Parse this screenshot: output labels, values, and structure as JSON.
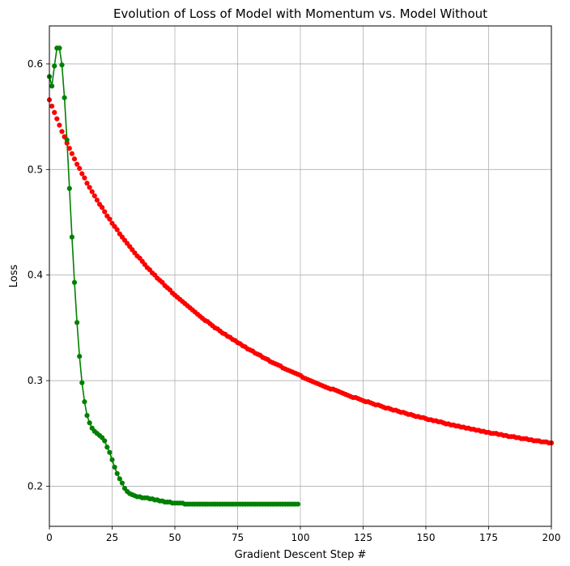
{
  "chart_data": {
    "type": "line",
    "title": "Evolution of Loss of Model with Momentum vs. Model Without",
    "xlabel": "Gradient Descent Step #",
    "ylabel": "Loss",
    "xlim": [
      0,
      200
    ],
    "ylim": [
      0.162,
      0.636
    ],
    "grid": true,
    "x_ticks": [
      0,
      25,
      50,
      75,
      100,
      125,
      150,
      175,
      200
    ],
    "y_ticks": [
      0.2,
      0.3,
      0.4,
      0.5,
      0.6
    ],
    "x_tick_labels": [
      "0",
      "25",
      "50",
      "75",
      "100",
      "125",
      "150",
      "175",
      "200"
    ],
    "y_tick_labels": [
      "0.2",
      "0.3",
      "0.4",
      "0.5",
      "0.6"
    ],
    "series": [
      {
        "color": "#ff0000",
        "style": "markers",
        "x_start": 0,
        "x_step": 1,
        "values": [
          0.566,
          0.56,
          0.554,
          0.548,
          0.542,
          0.536,
          0.531,
          0.525,
          0.52,
          0.515,
          0.51,
          0.505,
          0.501,
          0.496,
          0.492,
          0.487,
          0.483,
          0.479,
          0.475,
          0.471,
          0.467,
          0.464,
          0.46,
          0.456,
          0.453,
          0.449,
          0.446,
          0.443,
          0.439,
          0.436,
          0.433,
          0.43,
          0.427,
          0.424,
          0.421,
          0.418,
          0.416,
          0.413,
          0.41,
          0.407,
          0.405,
          0.402,
          0.4,
          0.397,
          0.395,
          0.393,
          0.39,
          0.388,
          0.386,
          0.383,
          0.381,
          0.379,
          0.377,
          0.375,
          0.373,
          0.371,
          0.369,
          0.367,
          0.365,
          0.363,
          0.361,
          0.359,
          0.357,
          0.356,
          0.354,
          0.352,
          0.35,
          0.349,
          0.347,
          0.345,
          0.344,
          0.342,
          0.341,
          0.339,
          0.338,
          0.336,
          0.335,
          0.333,
          0.332,
          0.33,
          0.329,
          0.328,
          0.326,
          0.325,
          0.324,
          0.322,
          0.321,
          0.32,
          0.318,
          0.317,
          0.316,
          0.315,
          0.314,
          0.312,
          0.311,
          0.31,
          0.309,
          0.308,
          0.307,
          0.306,
          0.305,
          0.303,
          0.302,
          0.301,
          0.3,
          0.299,
          0.298,
          0.297,
          0.296,
          0.295,
          0.294,
          0.293,
          0.292,
          0.292,
          0.291,
          0.29,
          0.289,
          0.288,
          0.287,
          0.286,
          0.285,
          0.284,
          0.284,
          0.283,
          0.282,
          0.281,
          0.28,
          0.28,
          0.279,
          0.278,
          0.277,
          0.277,
          0.276,
          0.275,
          0.274,
          0.274,
          0.273,
          0.272,
          0.272,
          0.271,
          0.27,
          0.27,
          0.269,
          0.268,
          0.268,
          0.267,
          0.266,
          0.266,
          0.265,
          0.265,
          0.264,
          0.263,
          0.263,
          0.262,
          0.262,
          0.261,
          0.261,
          0.26,
          0.259,
          0.259,
          0.258,
          0.258,
          0.257,
          0.257,
          0.256,
          0.256,
          0.255,
          0.255,
          0.254,
          0.254,
          0.253,
          0.253,
          0.252,
          0.252,
          0.251,
          0.251,
          0.25,
          0.25,
          0.25,
          0.249,
          0.249,
          0.248,
          0.248,
          0.247,
          0.247,
          0.247,
          0.246,
          0.246,
          0.245,
          0.245,
          0.245,
          0.244,
          0.244,
          0.243,
          0.243,
          0.243,
          0.242,
          0.242,
          0.242,
          0.241,
          0.241,
          0.241,
          0.24,
          0.24,
          0.24
        ]
      },
      {
        "color": "#008000",
        "style": "line+markers",
        "x_start": 0,
        "x_step": 1,
        "values": [
          0.588,
          0.579,
          0.598,
          0.615,
          0.615,
          0.599,
          0.568,
          0.528,
          0.482,
          0.436,
          0.393,
          0.355,
          0.323,
          0.298,
          0.28,
          0.267,
          0.26,
          0.255,
          0.252,
          0.25,
          0.248,
          0.246,
          0.243,
          0.237,
          0.232,
          0.225,
          0.218,
          0.212,
          0.207,
          0.203,
          0.198,
          0.195,
          0.193,
          0.192,
          0.191,
          0.19,
          0.19,
          0.189,
          0.189,
          0.189,
          0.188,
          0.188,
          0.187,
          0.187,
          0.186,
          0.186,
          0.185,
          0.185,
          0.185,
          0.184,
          0.184,
          0.184,
          0.184,
          0.184,
          0.183,
          0.183,
          0.183,
          0.183,
          0.183,
          0.183,
          0.183,
          0.183,
          0.183,
          0.183,
          0.183,
          0.183,
          0.183,
          0.183,
          0.183,
          0.183,
          0.183,
          0.183,
          0.183,
          0.183,
          0.183,
          0.183,
          0.183,
          0.183,
          0.183,
          0.183,
          0.183,
          0.183,
          0.183,
          0.183,
          0.183,
          0.183,
          0.183,
          0.183,
          0.183,
          0.183,
          0.183,
          0.183,
          0.183,
          0.183,
          0.183,
          0.183,
          0.183,
          0.183,
          0.183,
          0.183
        ]
      }
    ]
  }
}
